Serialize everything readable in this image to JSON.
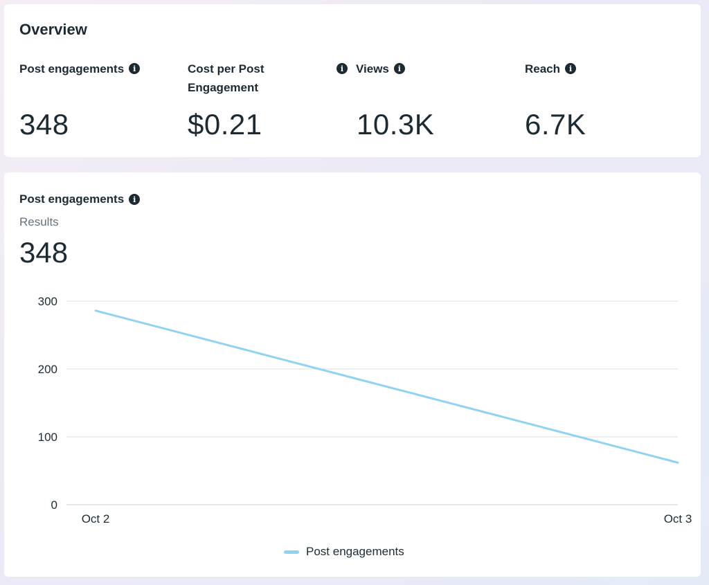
{
  "overview": {
    "title": "Overview",
    "metrics": [
      {
        "label": "Post engagements",
        "value": "348"
      },
      {
        "label": "Cost per Post Engagement",
        "value": "$0.21"
      },
      {
        "label": "Views",
        "value": "10.3K"
      },
      {
        "label": "Reach",
        "value": "6.7K"
      }
    ]
  },
  "engagement_section": {
    "title": "Post engagements",
    "results_label": "Results",
    "results_value": "348"
  },
  "icons": {
    "info": "info-icon",
    "info_glyph": "i"
  },
  "colors": {
    "series": "#8fd3f4",
    "text": "#1c2b33",
    "muted": "#65737e",
    "grid": "#dadde1"
  },
  "chart_data": {
    "type": "line",
    "x": [
      "Oct 2",
      "Oct 3"
    ],
    "series": [
      {
        "name": "Post engagements",
        "values": [
          286,
          62
        ]
      }
    ],
    "ylim": [
      0,
      300
    ],
    "yticks": [
      0,
      100,
      200,
      300
    ],
    "grid": true,
    "legend": "bottom-center"
  }
}
